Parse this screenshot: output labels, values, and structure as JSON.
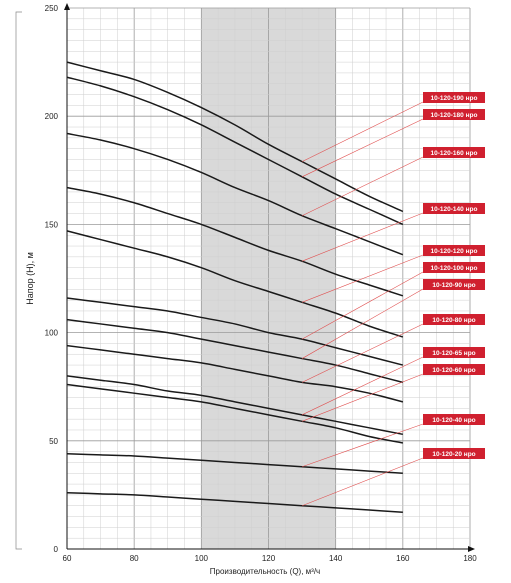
{
  "chart_data": {
    "type": "line",
    "title": "",
    "xlabel": "Производительность (Q), м³/ч",
    "ylabel": "Напор (H), м",
    "xlim": [
      60,
      180
    ],
    "ylim": [
      0,
      250
    ],
    "x_ticks": [
      60,
      80,
      100,
      120,
      140,
      160,
      180
    ],
    "y_ticks": [
      0,
      50,
      100,
      150,
      200,
      250
    ],
    "minor_grid_x": 5,
    "minor_grid_y": 5,
    "grid": true,
    "shaded_range": {
      "x_from": 100,
      "x_to": 140,
      "color": "#d9d9d9"
    },
    "label_color": "#d0202f",
    "leader_color": "#e05050",
    "curve_color": "#1a1a1a",
    "leader_x": 130,
    "x": [
      60,
      70,
      80,
      90,
      100,
      110,
      120,
      130,
      140,
      150,
      160
    ],
    "series": [
      {
        "name": "10-120-190 нро",
        "values": [
          225,
          221,
          217,
          211,
          204,
          196,
          187,
          179,
          171,
          163,
          156
        ]
      },
      {
        "name": "10-120-180 нро",
        "values": [
          218,
          214,
          209,
          203,
          196,
          188,
          180,
          172,
          164,
          157,
          150
        ]
      },
      {
        "name": "10-120-160 нро",
        "values": [
          192,
          189,
          185,
          180,
          174,
          167,
          161,
          154,
          148,
          142,
          136
        ]
      },
      {
        "name": "10-120-140 нро",
        "values": [
          167,
          164,
          160,
          155,
          150,
          144,
          138,
          133,
          127,
          122,
          117
        ]
      },
      {
        "name": "10-120-120 нро",
        "values": [
          147,
          143,
          139,
          135,
          130,
          124,
          119,
          114,
          109,
          103,
          98
        ]
      },
      {
        "name": "10-120-100 нро",
        "values": [
          116,
          114,
          112,
          110,
          107,
          104,
          100,
          97,
          93,
          89,
          85
        ]
      },
      {
        "name": "10-120-90 нро",
        "values": [
          106,
          104,
          102,
          100,
          97,
          94,
          91,
          88,
          85,
          81,
          77
        ]
      },
      {
        "name": "10-120-80 нро",
        "values": [
          94,
          92,
          90,
          88,
          86,
          83,
          80,
          77,
          75,
          72,
          68
        ]
      },
      {
        "name": "10-120-65 нро",
        "values": [
          80,
          78,
          76,
          73,
          71,
          68,
          65,
          62,
          59,
          56,
          53
        ]
      },
      {
        "name": "10-120-60 нро",
        "values": [
          76,
          74,
          72,
          70,
          68,
          65,
          62,
          59,
          56,
          52,
          49
        ]
      },
      {
        "name": "10-120-40 нро",
        "values": [
          44,
          43.5,
          43,
          42,
          41,
          40,
          39,
          38,
          37,
          36,
          35
        ]
      },
      {
        "name": "10-120-20 нро",
        "values": [
          26,
          25.5,
          25,
          24,
          23,
          22,
          21,
          20,
          19,
          18,
          17
        ]
      }
    ]
  }
}
